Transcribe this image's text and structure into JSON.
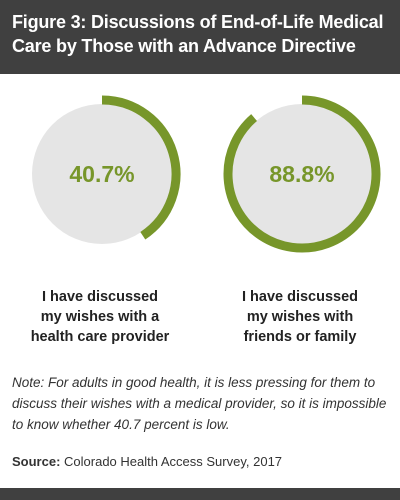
{
  "title": "Figure 3: Discussions of End-of-Life Medical Care by Those with an Advance Directive",
  "chart_data": {
    "type": "pie",
    "title": "Figure 3: Discussions of End-of-Life Medical Care by Those with an Advance Directive",
    "charts": [
      {
        "value": 40.7,
        "label": "40.7%",
        "caption_lines": [
          "I have discussed",
          "my wishes with a",
          "health care provider"
        ]
      },
      {
        "value": 88.8,
        "label": "88.8%",
        "caption_lines": [
          "I have discussed",
          "my wishes with",
          "friends or family"
        ]
      }
    ],
    "colors": {
      "arc": "#77962a",
      "track": "#e5e5e5",
      "label": "#77962a"
    }
  },
  "note": "Note: For adults in good health, it is less pressing for them to discuss their wishes with a medical provider, so it is impossible to know whether 40.7 percent is low.",
  "source": {
    "label": "Source:",
    "text": "Colorado Health Access Survey, 2017"
  }
}
